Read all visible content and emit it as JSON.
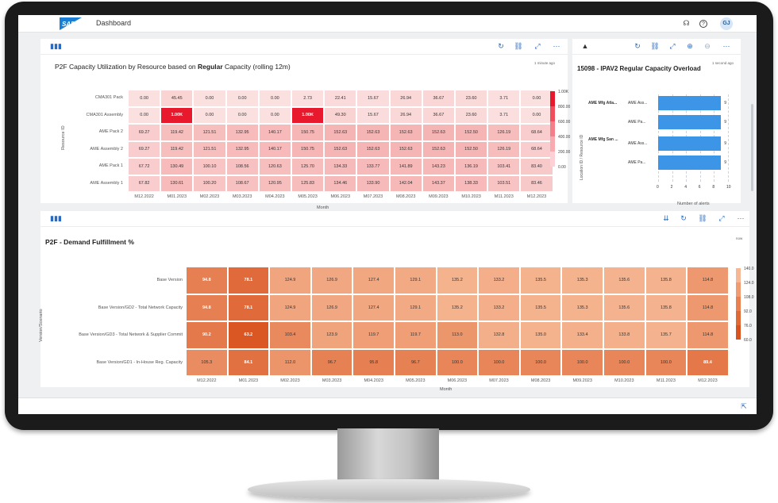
{
  "shell": {
    "logo": "SAP",
    "title": "Dashboard",
    "icons": [
      "headset-icon",
      "help-icon"
    ],
    "avatar": "GJ"
  },
  "card1": {
    "title_prefix": "P2F Capacity Utilization by Resource based on ",
    "title_bold": "Regular",
    "title_suffix": " Capacity (rolling 12m)",
    "timestamp": "1 minute ago",
    "y_axis": "Resource ID",
    "x_axis": "Month",
    "rows": [
      "CMA301 Pack",
      "CMA301 Assembly",
      "AME Pack 2",
      "AME Assembly 2",
      "AME Pack 1",
      "AME Assembly 1"
    ],
    "cols": [
      "M12.2022",
      "M01.2023",
      "M02.2023",
      "M03.2023",
      "M04.2023",
      "M05.2023",
      "M06.2023",
      "M07.2023",
      "M08.2023",
      "M09.2023",
      "M10.2023",
      "M11.2023",
      "M12.2023"
    ],
    "values": [
      [
        "0.00",
        "45.45",
        "0.00",
        "0.00",
        "0.00",
        "2.73",
        "22.41",
        "15.67",
        "26.94",
        "36.67",
        "23.60",
        "3.71",
        "0.00"
      ],
      [
        "0.00",
        "1.00K",
        "0.00",
        "0.00",
        "0.00",
        "1.00K",
        "49.30",
        "15.67",
        "26.94",
        "36.67",
        "23.60",
        "3.71",
        "0.00"
      ],
      [
        "69.27",
        "119.42",
        "121.51",
        "132.95",
        "140.17",
        "150.75",
        "152.63",
        "152.63",
        "152.63",
        "152.63",
        "152.50",
        "126.19",
        "68.64"
      ],
      [
        "69.27",
        "119.42",
        "121.51",
        "132.95",
        "140.17",
        "150.75",
        "152.63",
        "152.63",
        "152.63",
        "152.63",
        "152.50",
        "126.19",
        "68.64"
      ],
      [
        "67.72",
        "130.49",
        "100.10",
        "108.56",
        "120.63",
        "125.70",
        "134.33",
        "133.77",
        "141.89",
        "143.23",
        "136.19",
        "103.41",
        "83.40"
      ],
      [
        "67.82",
        "130.61",
        "100.20",
        "108.67",
        "120.95",
        "125.83",
        "134.46",
        "133.90",
        "142.04",
        "143.37",
        "138.33",
        "103.51",
        "83.46"
      ]
    ],
    "legend": [
      "1.00K",
      "800.00",
      "600.00",
      "400.00",
      "200.00",
      "0.00"
    ]
  },
  "card2": {
    "title": "15098 - IPAV2 Regular Capacity Overload",
    "timestamp": "1 second ago",
    "y_axis": "Location ID / Resource ID",
    "x_axis": "Number of alerts",
    "groups": [
      "AME Mfg Atla...",
      "AME Mfg San ..."
    ],
    "bars": [
      {
        "label": "AME Ass...",
        "value": 9
      },
      {
        "label": "AME Pa...",
        "value": 9
      },
      {
        "label": "AME Ass...",
        "value": 9
      },
      {
        "label": "AME Pa...",
        "value": 9
      }
    ],
    "bar_value_labels": [
      "9",
      "9",
      "9",
      "9"
    ],
    "ticks": [
      "0",
      "2",
      "4",
      "6",
      "8",
      "10"
    ],
    "xmax": 10
  },
  "card3": {
    "title": "P2F - Demand Fulfillment %",
    "timestamp": "now",
    "y_axis": "Version/Scenario",
    "x_axis": "Month",
    "rows": [
      "Base Version",
      "Base Version/GD2 - Total Network Capacity",
      "Base Version/GD3 - Total Network & Supplier Commit",
      "Base Version/GD1 - In-House Reg. Capacity"
    ],
    "cols": [
      "M12.2022",
      "M01.2023",
      "M02.2023",
      "M03.2023",
      "M04.2023",
      "M05.2023",
      "M06.2023",
      "M07.2023",
      "M08.2023",
      "M09.2023",
      "M10.2023",
      "M11.2023",
      "M12.2023"
    ],
    "values": [
      [
        "94.8",
        "78.1",
        "124.9",
        "126.9",
        "127.4",
        "129.1",
        "135.2",
        "133.2",
        "135.5",
        "135.3",
        "135.6",
        "135.8",
        "114.8"
      ],
      [
        "94.8",
        "78.1",
        "124.9",
        "126.9",
        "127.4",
        "129.1",
        "135.2",
        "133.2",
        "135.5",
        "135.3",
        "135.6",
        "135.8",
        "114.8"
      ],
      [
        "90.2",
        "63.2",
        "103.4",
        "123.9",
        "119.7",
        "119.7",
        "113.0",
        "132.8",
        "135.0",
        "133.4",
        "133.8",
        "135.7",
        "114.8"
      ],
      [
        "105.3",
        "84.1",
        "112.0",
        "96.7",
        "95.8",
        "96.7",
        "100.0",
        "100.0",
        "100.0",
        "100.0",
        "100.0",
        "100.0",
        "89.4"
      ]
    ],
    "legend": [
      "140.0",
      "124.0",
      "108.0",
      "92.0",
      "76.0",
      "60.0"
    ]
  },
  "colors": {
    "sap_blue": "#1a7fd4",
    "bar_blue": "#3d95e8",
    "heat_low": "#fbe0e0",
    "heat_high": "#e8192c",
    "orange_high": "#f6b894",
    "orange_low": "#d9531e"
  }
}
